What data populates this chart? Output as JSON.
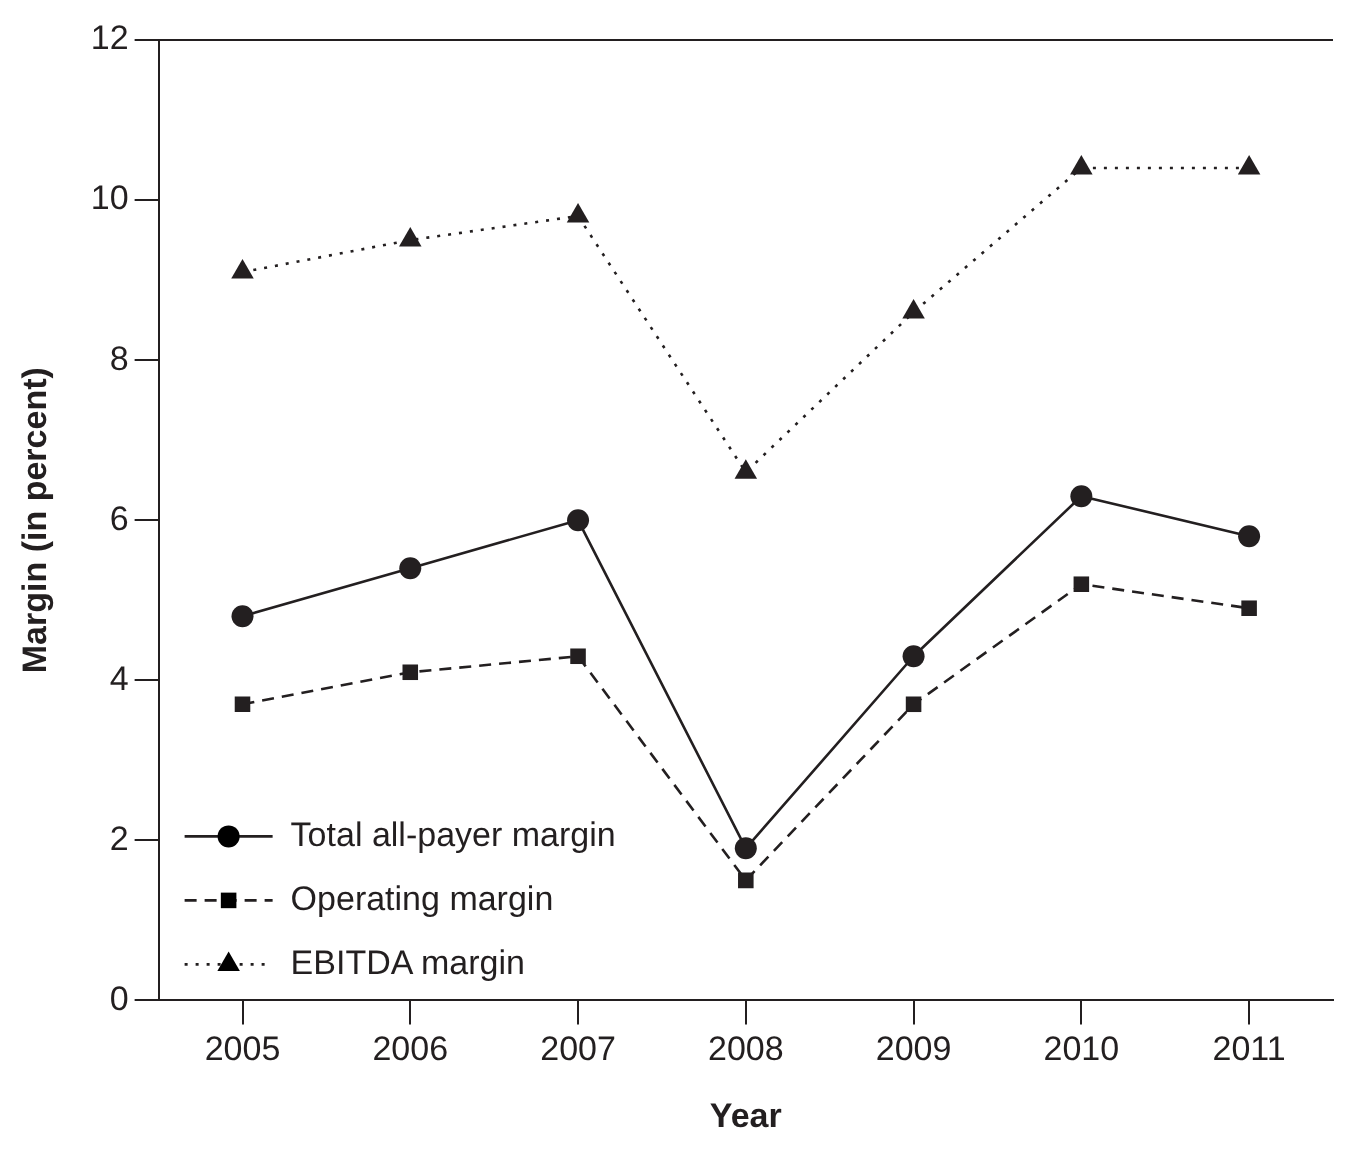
{
  "chart_data": {
    "type": "line",
    "xlabel": "Year",
    "ylabel": "Margin (in percent)",
    "categories": [
      "2005",
      "2006",
      "2007",
      "2008",
      "2009",
      "2010",
      "2011"
    ],
    "series": [
      {
        "name": "Total all-payer margin",
        "color": "#231f20",
        "values": [
          4.8,
          5.4,
          6.0,
          1.9,
          4.3,
          6.3,
          5.8
        ],
        "marker": "circle",
        "line_style": "solid"
      },
      {
        "name": "Operating margin",
        "color": "#231f20",
        "values": [
          3.7,
          4.1,
          4.3,
          1.5,
          3.7,
          5.2,
          4.9
        ],
        "marker": "square",
        "line_style": "dashed"
      },
      {
        "name": "EBITDA margin",
        "color": "#231f20",
        "values": [
          9.1,
          9.5,
          9.8,
          6.6,
          8.6,
          10.4,
          10.4
        ],
        "marker": "triangle",
        "line_style": "dotted"
      }
    ],
    "ylim": [
      0,
      12
    ],
    "yticks": [
      0,
      2,
      4,
      6,
      8,
      10,
      12
    ],
    "grid": false,
    "legend": "bottom left"
  }
}
